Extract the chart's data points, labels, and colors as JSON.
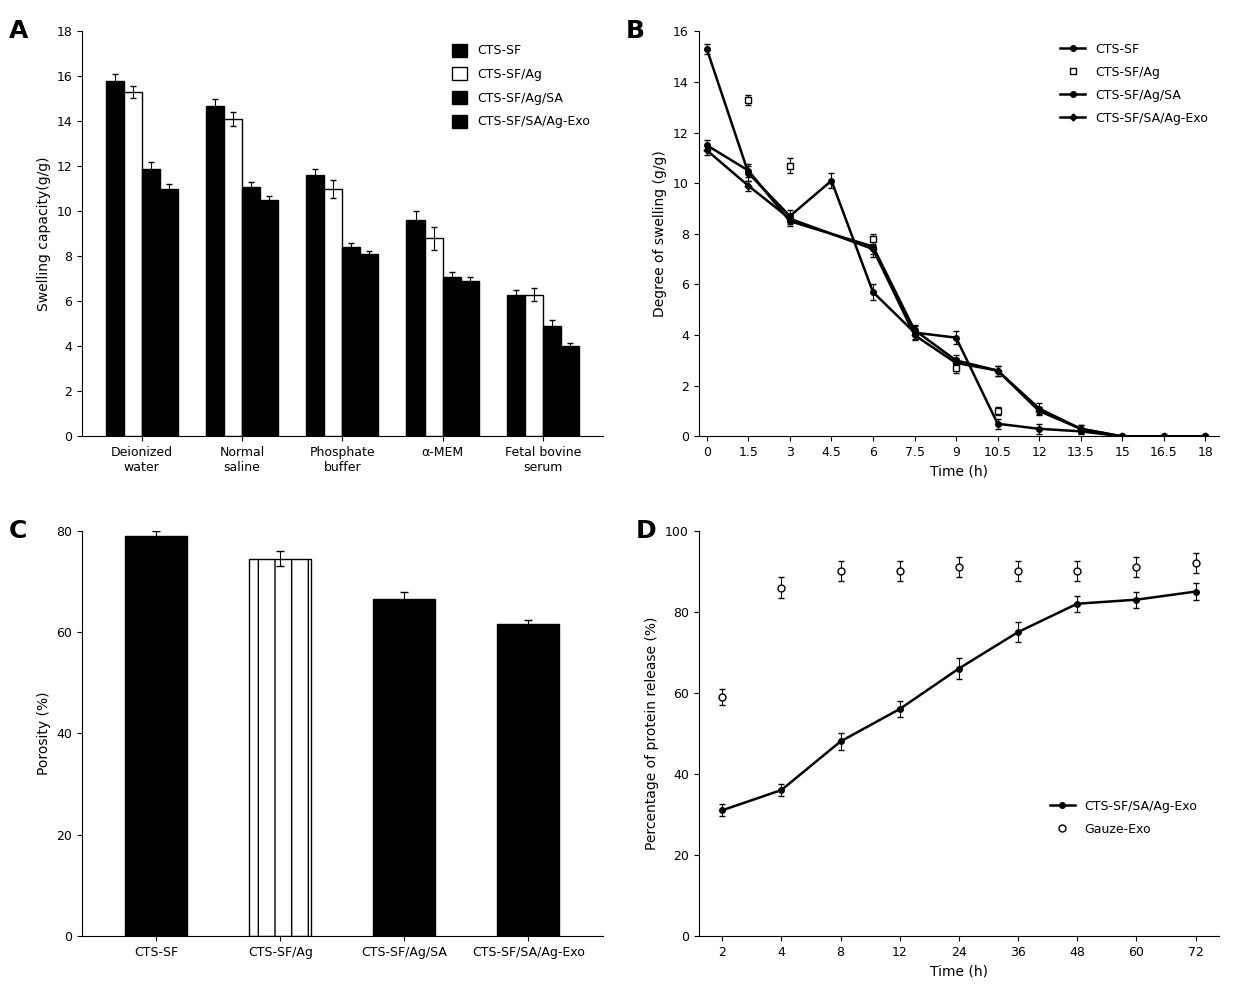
{
  "panel_A": {
    "categories": [
      "Deionized\nwater",
      "Normal\nsaline",
      "Phosphate\nbuffer",
      "α-MEM",
      "Fetal bovine\nserum"
    ],
    "series": {
      "CTS-SF": [
        15.8,
        14.7,
        11.6,
        9.6,
        6.3
      ],
      "CTS-SF/Ag": [
        15.3,
        14.1,
        11.0,
        8.8,
        6.3
      ],
      "CTS-SF/Ag/SA": [
        11.9,
        11.1,
        8.4,
        7.1,
        4.9
      ],
      "CTS-SF/SA/Ag-Exo": [
        11.0,
        10.5,
        8.1,
        6.9,
        4.0
      ]
    },
    "errors": {
      "CTS-SF": [
        0.3,
        0.3,
        0.3,
        0.4,
        0.2
      ],
      "CTS-SF/Ag": [
        0.25,
        0.3,
        0.4,
        0.5,
        0.3
      ],
      "CTS-SF/Ag/SA": [
        0.3,
        0.2,
        0.2,
        0.2,
        0.25
      ],
      "CTS-SF/SA/Ag-Exo": [
        0.2,
        0.2,
        0.15,
        0.2,
        0.15
      ]
    },
    "ylabel": "Swelling capacity(g/g)",
    "ylim": [
      0,
      18
    ],
    "yticks": [
      0,
      2,
      4,
      6,
      8,
      10,
      12,
      14,
      16,
      18
    ],
    "colors": [
      "#000000",
      "#ffffff",
      "#000000",
      "#000000"
    ],
    "edgecolors": [
      "#000000",
      "#000000",
      "#000000",
      "#000000"
    ],
    "hatches": [
      "",
      "",
      "",
      ""
    ]
  },
  "panel_B": {
    "time": [
      0,
      1.5,
      3,
      4.5,
      6,
      7.5,
      9,
      10.5,
      12,
      13.5,
      15,
      16.5,
      18
    ],
    "series": {
      "CTS-SF": [
        15.3,
        10.4,
        8.7,
        10.1,
        5.7,
        4.1,
        3.9,
        0.5,
        0.3,
        0.2,
        0.0,
        0.0,
        0.0
      ],
      "CTS-SF/Ag": [
        null,
        13.3,
        10.7,
        null,
        7.8,
        null,
        2.7,
        1.0,
        null,
        null,
        null,
        null,
        null
      ],
      "CTS-SF/Ag/SA": [
        11.5,
        10.5,
        8.5,
        null,
        7.5,
        4.2,
        3.0,
        2.6,
        1.1,
        0.3,
        0.0,
        0.0,
        0.0
      ],
      "CTS-SF/SA/Ag-Exo": [
        11.3,
        9.9,
        8.6,
        null,
        7.4,
        4.0,
        2.9,
        2.6,
        1.0,
        0.3,
        0.0,
        0.0,
        0.0
      ]
    },
    "errors": {
      "CTS-SF": [
        0.2,
        0.3,
        0.25,
        0.3,
        0.3,
        0.25,
        0.25,
        0.2,
        0.2,
        0.1,
        0.0,
        0.0,
        0.0
      ],
      "CTS-SF/Ag": [
        null,
        0.2,
        0.3,
        null,
        0.2,
        null,
        0.2,
        0.15,
        null,
        null,
        null,
        null,
        null
      ],
      "CTS-SF/Ag/SA": [
        0.2,
        0.25,
        0.2,
        null,
        0.3,
        0.2,
        0.2,
        0.2,
        0.2,
        0.15,
        0.0,
        0.0,
        0.0
      ],
      "CTS-SF/SA/Ag-Exo": [
        0.2,
        0.2,
        0.2,
        null,
        0.3,
        0.2,
        0.2,
        0.2,
        0.15,
        0.15,
        0.0,
        0.0,
        0.0
      ]
    },
    "ylabel": "Degree of swelling (g/g)",
    "ylim": [
      0,
      16
    ],
    "yticks": [
      0,
      2,
      4,
      6,
      8,
      10,
      12,
      14,
      16
    ],
    "xticks": [
      0,
      1.5,
      3,
      4.5,
      6,
      7.5,
      9,
      10.5,
      12,
      13.5,
      15,
      16.5,
      18
    ],
    "xlabel": "Time (h)"
  },
  "panel_C": {
    "categories": [
      "CTS-SF",
      "CTS-SF/Ag",
      "CTS-SF/Ag/SA",
      "CTS-SF/SA/Ag-Exo"
    ],
    "values": [
      79.0,
      74.5,
      66.5,
      61.5
    ],
    "errors": [
      1.0,
      1.5,
      1.5,
      0.8
    ],
    "ylabel": "Porosity (%)",
    "ylim": [
      0,
      80
    ],
    "yticks": [
      0,
      20,
      40,
      60,
      80
    ],
    "colors": [
      "#000000",
      "#ffffff",
      "#000000",
      "#000000"
    ],
    "edgecolors": [
      "#000000",
      "#000000",
      "#000000",
      "#000000"
    ],
    "hatches": [
      "",
      "|",
      "",
      ""
    ]
  },
  "panel_D": {
    "time_exo": [
      2,
      4,
      8,
      12,
      24,
      36,
      48,
      60,
      72
    ],
    "time_gauze": [
      2,
      4,
      8,
      12,
      24,
      36,
      48,
      60,
      72
    ],
    "exo_values": [
      31,
      36,
      48,
      56,
      66,
      75,
      82,
      83,
      85
    ],
    "gauze_values": [
      59,
      86,
      90,
      90,
      91,
      90,
      90,
      91,
      92
    ],
    "exo_errors": [
      1.5,
      1.5,
      2.0,
      2.0,
      2.5,
      2.5,
      2.0,
      2.0,
      2.0
    ],
    "gauze_errors": [
      2.0,
      2.5,
      2.5,
      2.5,
      2.5,
      2.5,
      2.5,
      2.5,
      2.5
    ],
    "ylabel": "Percentage of protein release (%)",
    "xlabel": "Time (h)",
    "ylim": [
      0,
      100
    ],
    "yticks": [
      0,
      20,
      40,
      60,
      80,
      100
    ],
    "xticks": [
      2,
      4,
      8,
      12,
      24,
      36,
      48,
      60,
      72
    ],
    "xlabels": [
      "2",
      "4",
      "8",
      "12",
      "24",
      "36",
      "48",
      "60",
      "72"
    ]
  },
  "background_color": "#ffffff",
  "panel_labels": [
    "A",
    "B",
    "C",
    "D"
  ],
  "label_fontsize": 18,
  "tick_fontsize": 9,
  "axis_label_fontsize": 10,
  "legend_fontsize": 9
}
